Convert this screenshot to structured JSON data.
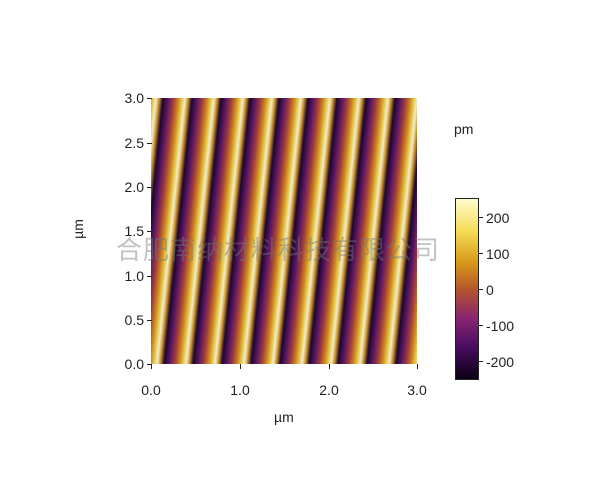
{
  "image": {
    "description_colormap": [
      "#0d0018",
      "#3b0a52",
      "#7a1f6e",
      "#b5452f",
      "#d78a14",
      "#f4d74a",
      "#fdfbd0"
    ]
  },
  "axes": {
    "xlabel": "µm",
    "ylabel": "µm",
    "x_ticks": [
      "0.0",
      "1.0",
      "2.0",
      "3.0"
    ],
    "y_ticks": [
      "3.0",
      "2.5",
      "2.0",
      "1.5",
      "1.0",
      "0.5",
      "0.0"
    ]
  },
  "colorbar": {
    "unit": "pm",
    "ticks": [
      "200",
      "100",
      "0",
      "-100",
      "-200"
    ]
  },
  "watermark": "合肥南纳材料科技有限公司"
}
